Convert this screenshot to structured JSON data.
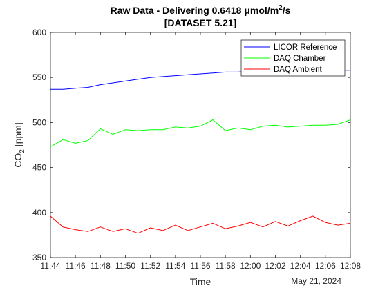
{
  "chart_data": {
    "type": "line",
    "title_line1": "Raw Data - Delivering 0.6418 μmol/m",
    "title_superscript": "2",
    "title_suffix": "/s",
    "title_line2": "[DATASET 5.21]",
    "xlabel": "Time",
    "ylabel_main": "CO",
    "ylabel_subscript": "2",
    "ylabel_unit": " [ppm]",
    "date_label": "May 21, 2024",
    "xlim": [
      "11:44",
      "12:08"
    ],
    "ylim": [
      350,
      600
    ],
    "x_ticks": [
      "11:44",
      "11:46",
      "11:48",
      "11:50",
      "11:52",
      "11:54",
      "11:56",
      "11:58",
      "12:00",
      "12:02",
      "12:04",
      "12:06",
      "12:08"
    ],
    "y_ticks": [
      350,
      400,
      450,
      500,
      550,
      600
    ],
    "grid": false,
    "legend_position": "top-right",
    "series": [
      {
        "name": "LICOR Reference",
        "color": "#0000ff",
        "x": [
          "11:44",
          "11:45",
          "11:46",
          "11:47",
          "11:48",
          "11:49",
          "11:50",
          "11:51",
          "11:52",
          "11:53",
          "11:54",
          "11:55",
          "11:56",
          "11:57",
          "11:58",
          "11:59",
          "12:00",
          "12:01",
          "12:02",
          "12:03",
          "12:04",
          "12:05",
          "12:06",
          "12:07",
          "12:08"
        ],
        "values": [
          537,
          537,
          538,
          539,
          542,
          544,
          546,
          548,
          550,
          551,
          552,
          553,
          554,
          555,
          556,
          556,
          557,
          557,
          557,
          557,
          558,
          558,
          558,
          558,
          558
        ]
      },
      {
        "name": "DAQ Chamber",
        "color": "#00ff00",
        "x": [
          "11:44",
          "11:45",
          "11:46",
          "11:47",
          "11:48",
          "11:49",
          "11:50",
          "11:51",
          "11:52",
          "11:53",
          "11:54",
          "11:55",
          "11:56",
          "11:57",
          "11:58",
          "11:59",
          "12:00",
          "12:01",
          "12:02",
          "12:03",
          "12:04",
          "12:05",
          "12:06",
          "12:07",
          "12:08"
        ],
        "values": [
          473,
          481,
          477,
          480,
          493,
          487,
          492,
          491,
          492,
          492,
          495,
          494,
          496,
          503,
          491,
          494,
          492,
          496,
          497,
          495,
          496,
          497,
          497,
          498,
          503
        ]
      },
      {
        "name": "DAQ Ambient",
        "color": "#ff0000",
        "x": [
          "11:44",
          "11:45",
          "11:46",
          "11:47",
          "11:48",
          "11:49",
          "11:50",
          "11:51",
          "11:52",
          "11:53",
          "11:54",
          "11:55",
          "11:56",
          "11:57",
          "11:58",
          "11:59",
          "12:00",
          "12:01",
          "12:02",
          "12:03",
          "12:04",
          "12:05",
          "12:06",
          "12:07",
          "12:08"
        ],
        "values": [
          396,
          384,
          381,
          379,
          384,
          379,
          382,
          377,
          383,
          380,
          386,
          380,
          384,
          388,
          382,
          385,
          389,
          384,
          390,
          385,
          391,
          396,
          389,
          386,
          388
        ]
      }
    ]
  }
}
